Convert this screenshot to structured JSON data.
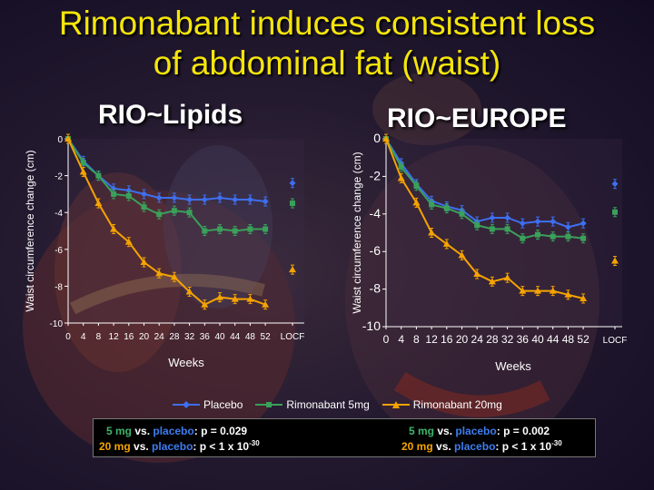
{
  "title_line1": "Rimonabant induces consistent loss",
  "title_line2": "of abdominal fat (waist)",
  "legend": [
    {
      "label": "Placebo",
      "color": "#3d6ff0",
      "marker": "diamond"
    },
    {
      "label": "Rimonabant 5mg",
      "color": "#3aa05a",
      "marker": "square"
    },
    {
      "label": "Rimonabant 20mg",
      "color": "#f5a300",
      "marker": "triangle"
    }
  ],
  "stats": {
    "left": {
      "line1": {
        "dose": "5 mg",
        "vs": " vs. ",
        "ref": "placebo",
        "rest": ": p = 0.029"
      },
      "line2": {
        "dose": "20 mg",
        "vs": " vs. ",
        "ref": "placebo",
        "rest": ": p < 1 x 10",
        "exp": "-30"
      }
    },
    "right": {
      "line1": {
        "dose": "5 mg",
        "vs": " vs. ",
        "ref": "placebo",
        "rest": ": p = 0.002"
      },
      "line2": {
        "dose": "20 mg",
        "vs": " vs. ",
        "ref": "placebo",
        "rest": ": p < 1 x 10",
        "exp": "-30"
      }
    }
  },
  "chart_data": [
    {
      "type": "line",
      "title": "RIO~Lipids",
      "xlabel": "Weeks",
      "ylabel": "Waist circumference change (cm)",
      "ylim": [
        -10,
        0
      ],
      "yticks": [
        0,
        -2,
        -4,
        -6,
        -8,
        -10
      ],
      "xticks": [
        "0",
        "4",
        "8",
        "12",
        "16",
        "20",
        "24",
        "28",
        "32",
        "36",
        "40",
        "44",
        "48",
        "52",
        "LOCF"
      ],
      "x": [
        0,
        4,
        8,
        12,
        16,
        20,
        24,
        28,
        32,
        36,
        40,
        44,
        48,
        52
      ],
      "grid": false,
      "series": [
        {
          "name": "Placebo",
          "color": "#3d6ff0",
          "marker": "diamond",
          "values": [
            0,
            -1.2,
            -2.0,
            -2.7,
            -2.8,
            -3.0,
            -3.2,
            -3.2,
            -3.3,
            -3.3,
            -3.2,
            -3.3,
            -3.3,
            -3.4
          ],
          "locf": -2.4
        },
        {
          "name": "Rimonabant 5mg",
          "color": "#3aa05a",
          "marker": "square",
          "values": [
            0,
            -1.3,
            -2.0,
            -3.0,
            -3.1,
            -3.7,
            -4.1,
            -3.9,
            -4.0,
            -5.0,
            -4.9,
            -5.0,
            -4.9,
            -4.9
          ],
          "locf": -3.5
        },
        {
          "name": "Rimonabant 20mg",
          "color": "#f5a300",
          "marker": "triangle",
          "values": [
            0,
            -1.8,
            -3.5,
            -4.9,
            -5.6,
            -6.7,
            -7.3,
            -7.5,
            -8.3,
            -9.0,
            -8.6,
            -8.7,
            -8.7,
            -9.0
          ],
          "locf": -7.1
        }
      ]
    },
    {
      "type": "line",
      "title": "RIO~EUROPE",
      "xlabel": "Weeks",
      "ylabel": "Waist circumference change (cm)",
      "ylim": [
        -10,
        0
      ],
      "yticks": [
        0,
        -2,
        -4,
        -6,
        -8,
        -10
      ],
      "xticks": [
        "0",
        "4",
        "8",
        "12",
        "16",
        "20",
        "24",
        "28",
        "32",
        "36",
        "40",
        "44",
        "48",
        "52",
        "LOCF"
      ],
      "xtick_labels_display": [
        "0",
        "4",
        "8",
        "12",
        "16",
        "20",
        "24",
        "28",
        "32",
        "36",
        "40",
        "44",
        "48",
        "52",
        "LOCF"
      ],
      "x": [
        0,
        4,
        8,
        12,
        16,
        20,
        24,
        28,
        32,
        36,
        40,
        44,
        48,
        52
      ],
      "grid": false,
      "series": [
        {
          "name": "Placebo",
          "color": "#3d6ff0",
          "marker": "diamond",
          "values": [
            0,
            -1.3,
            -2.4,
            -3.3,
            -3.6,
            -3.8,
            -4.4,
            -4.2,
            -4.2,
            -4.5,
            -4.4,
            -4.4,
            -4.7,
            -4.5
          ],
          "locf": -2.4
        },
        {
          "name": "Rimonabant 5mg",
          "color": "#3aa05a",
          "marker": "square",
          "values": [
            0,
            -1.5,
            -2.5,
            -3.5,
            -3.7,
            -4.0,
            -4.6,
            -4.8,
            -4.8,
            -5.3,
            -5.1,
            -5.2,
            -5.2,
            -5.3
          ],
          "locf": -3.9
        },
        {
          "name": "Rimonabant 20mg",
          "color": "#f5a300",
          "marker": "triangle",
          "values": [
            0,
            -2.1,
            -3.4,
            -5.0,
            -5.6,
            -6.2,
            -7.2,
            -7.6,
            -7.4,
            -8.1,
            -8.1,
            -8.1,
            -8.3,
            -8.5
          ],
          "locf": -6.5
        }
      ]
    }
  ]
}
